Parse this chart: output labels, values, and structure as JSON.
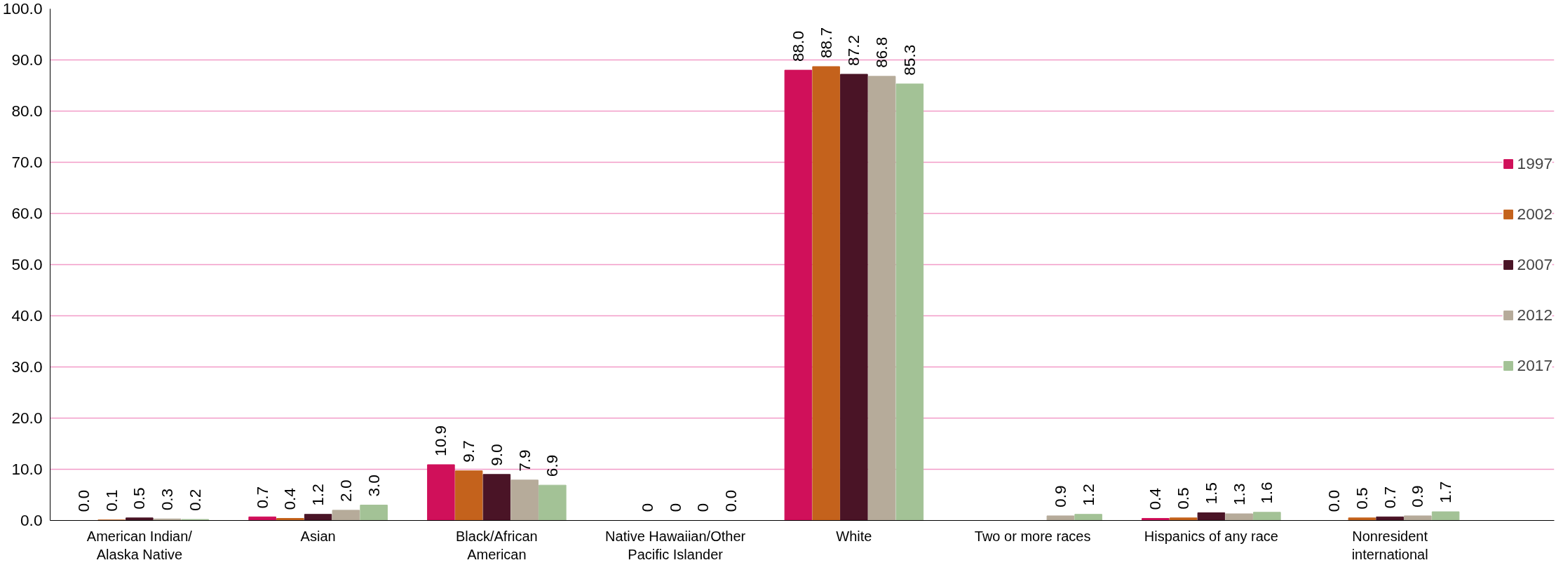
{
  "chart_data": {
    "type": "bar",
    "categories": [
      "American Indian/Alaska Native",
      "Asian",
      "Black/African American",
      "Native Hawaiian/Other Pacific Islander",
      "White",
      "Two or more races",
      "Hispanics of any race",
      "Nonresident international"
    ],
    "series": [
      {
        "name": "1997",
        "color": "#d0105a",
        "values": [
          0.0,
          0.7,
          10.9,
          null,
          88.0,
          null,
          0.4,
          0.0
        ],
        "value_labels": [
          "0.0",
          "0.7",
          "10.9",
          null,
          "88.0",
          null,
          "0.4",
          "0.0"
        ]
      },
      {
        "name": "2002",
        "color": "#c4621c",
        "values": [
          0.1,
          0.4,
          9.7,
          0,
          88.7,
          null,
          0.5,
          0.5
        ],
        "value_labels": [
          "0.1",
          "0.4",
          "9.7",
          "0",
          "88.7",
          null,
          "0.5",
          "0.5"
        ]
      },
      {
        "name": "2007",
        "color": "#4a1426",
        "values": [
          0.5,
          1.2,
          9.0,
          0,
          87.2,
          null,
          1.5,
          0.7
        ],
        "value_labels": [
          "0.5",
          "1.2",
          "9.0",
          "0",
          "87.2",
          null,
          "1.5",
          "0.7"
        ]
      },
      {
        "name": "2012",
        "color": "#b6ab9a",
        "values": [
          0.3,
          2.0,
          7.9,
          0,
          86.8,
          0.9,
          1.3,
          0.9
        ],
        "value_labels": [
          "0.3",
          "2.0",
          "7.9",
          "0",
          "86.8",
          "0.9",
          "1.3",
          "0.9"
        ]
      },
      {
        "name": "2017",
        "color": "#a3c296",
        "values": [
          0.2,
          3.0,
          6.9,
          0.0,
          85.3,
          1.2,
          1.6,
          1.7
        ],
        "value_labels": [
          "0.2",
          "3.0",
          "6.9",
          "0.0",
          "85.3",
          "1.2",
          "1.6",
          "1.7"
        ]
      }
    ],
    "ylim": [
      0,
      100
    ],
    "yticks": [
      {
        "value": 0,
        "label": "0.0"
      },
      {
        "value": 10,
        "label": "10.0"
      },
      {
        "value": 20,
        "label": "20.0"
      },
      {
        "value": 30,
        "label": "30.0"
      },
      {
        "value": 40,
        "label": "40.0"
      },
      {
        "value": 50,
        "label": "50.0"
      },
      {
        "value": 60,
        "label": "60.0"
      },
      {
        "value": 70,
        "label": "70.0"
      },
      {
        "value": 80,
        "label": "80.0"
      },
      {
        "value": 90,
        "label": "90.0"
      },
      {
        "value": 100,
        "label": "100.0"
      }
    ],
    "grid": "y",
    "legend": "right"
  }
}
